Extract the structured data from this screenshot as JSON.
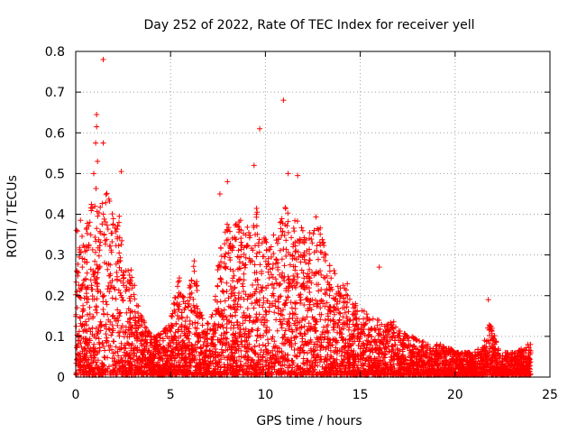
{
  "chart_data": {
    "type": "scatter",
    "title": "Day 252 of 2022, Rate Of TEC Index for receiver yell",
    "xlabel": "GPS time / hours",
    "ylabel": "ROTI / TECUs",
    "xlim": [
      0,
      25
    ],
    "ylim": [
      0,
      0.8
    ],
    "x_ticks": [
      0,
      5,
      10,
      15,
      20,
      25
    ],
    "x_tick_labels": [
      "0",
      "5",
      "10",
      "15",
      "20",
      "25"
    ],
    "y_ticks": [
      0,
      0.1,
      0.2,
      0.3,
      0.4,
      0.5,
      0.6,
      0.7,
      0.8
    ],
    "y_tick_labels": [
      "0",
      "0.1",
      "0.2",
      "0.3",
      "0.4",
      "0.5",
      "0.6",
      "0.7",
      "0.8"
    ],
    "grid": true,
    "marker": "+",
    "color": "#ff0000",
    "series": [
      {
        "name": "ROTI",
        "envelope": {
          "x": [
            0.0,
            0.25,
            0.5,
            0.75,
            1.0,
            1.25,
            1.5,
            1.75,
            2.0,
            2.25,
            2.5,
            2.75,
            3.0,
            3.25,
            3.5,
            3.75,
            4.0,
            4.25,
            4.5,
            4.75,
            5.0,
            5.25,
            5.5,
            5.75,
            6.0,
            6.25,
            6.5,
            6.75,
            7.0,
            7.25,
            7.5,
            7.75,
            8.0,
            8.25,
            8.5,
            8.75,
            9.0,
            9.25,
            9.5,
            9.75,
            10.0,
            10.25,
            10.5,
            10.75,
            11.0,
            11.25,
            11.5,
            11.75,
            12.0,
            12.25,
            12.5,
            12.75,
            13.0,
            13.25,
            13.5,
            13.75,
            14.0,
            14.25,
            14.5,
            14.75,
            15.0,
            15.25,
            15.5,
            15.75,
            16.0,
            16.25,
            16.5,
            16.75,
            17.0,
            17.25,
            17.5,
            17.75,
            18.0,
            18.25,
            18.5,
            18.75,
            19.0,
            19.25,
            19.5,
            19.75,
            20.0,
            20.25,
            20.5,
            20.75,
            21.0,
            21.25,
            21.5,
            21.75,
            22.0,
            22.25,
            22.5,
            22.75,
            23.0,
            23.25,
            23.5,
            23.75,
            24.0
          ],
          "ymax": [
            0.38,
            0.34,
            0.36,
            0.4,
            0.48,
            0.42,
            0.44,
            0.46,
            0.4,
            0.42,
            0.32,
            0.28,
            0.26,
            0.18,
            0.15,
            0.12,
            0.1,
            0.1,
            0.11,
            0.12,
            0.14,
            0.2,
            0.26,
            0.18,
            0.22,
            0.3,
            0.17,
            0.14,
            0.13,
            0.16,
            0.3,
            0.36,
            0.38,
            0.34,
            0.4,
            0.38,
            0.36,
            0.4,
            0.42,
            0.38,
            0.35,
            0.32,
            0.36,
            0.38,
            0.42,
            0.4,
            0.38,
            0.4,
            0.36,
            0.34,
            0.38,
            0.4,
            0.34,
            0.3,
            0.28,
            0.24,
            0.22,
            0.24,
            0.2,
            0.18,
            0.17,
            0.16,
            0.15,
            0.14,
            0.14,
            0.13,
            0.13,
            0.14,
            0.12,
            0.11,
            0.1,
            0.1,
            0.09,
            0.09,
            0.08,
            0.08,
            0.08,
            0.08,
            0.07,
            0.07,
            0.06,
            0.06,
            0.06,
            0.06,
            0.06,
            0.07,
            0.08,
            0.13,
            0.12,
            0.07,
            0.06,
            0.06,
            0.06,
            0.06,
            0.07,
            0.08,
            0.08
          ]
        },
        "outliers": [
          {
            "x": 1.45,
            "y": 0.78
          },
          {
            "x": 1.1,
            "y": 0.645
          },
          {
            "x": 1.1,
            "y": 0.615
          },
          {
            "x": 1.05,
            "y": 0.575
          },
          {
            "x": 1.45,
            "y": 0.575
          },
          {
            "x": 1.15,
            "y": 0.53
          },
          {
            "x": 0.95,
            "y": 0.5
          },
          {
            "x": 2.4,
            "y": 0.505
          },
          {
            "x": 0.25,
            "y": 0.385
          },
          {
            "x": 9.7,
            "y": 0.61
          },
          {
            "x": 10.95,
            "y": 0.68
          },
          {
            "x": 9.4,
            "y": 0.52
          },
          {
            "x": 11.2,
            "y": 0.5
          },
          {
            "x": 11.7,
            "y": 0.495
          },
          {
            "x": 8.0,
            "y": 0.48
          },
          {
            "x": 7.6,
            "y": 0.45
          },
          {
            "x": 16.0,
            "y": 0.27
          },
          {
            "x": 21.75,
            "y": 0.19
          }
        ]
      }
    ]
  }
}
